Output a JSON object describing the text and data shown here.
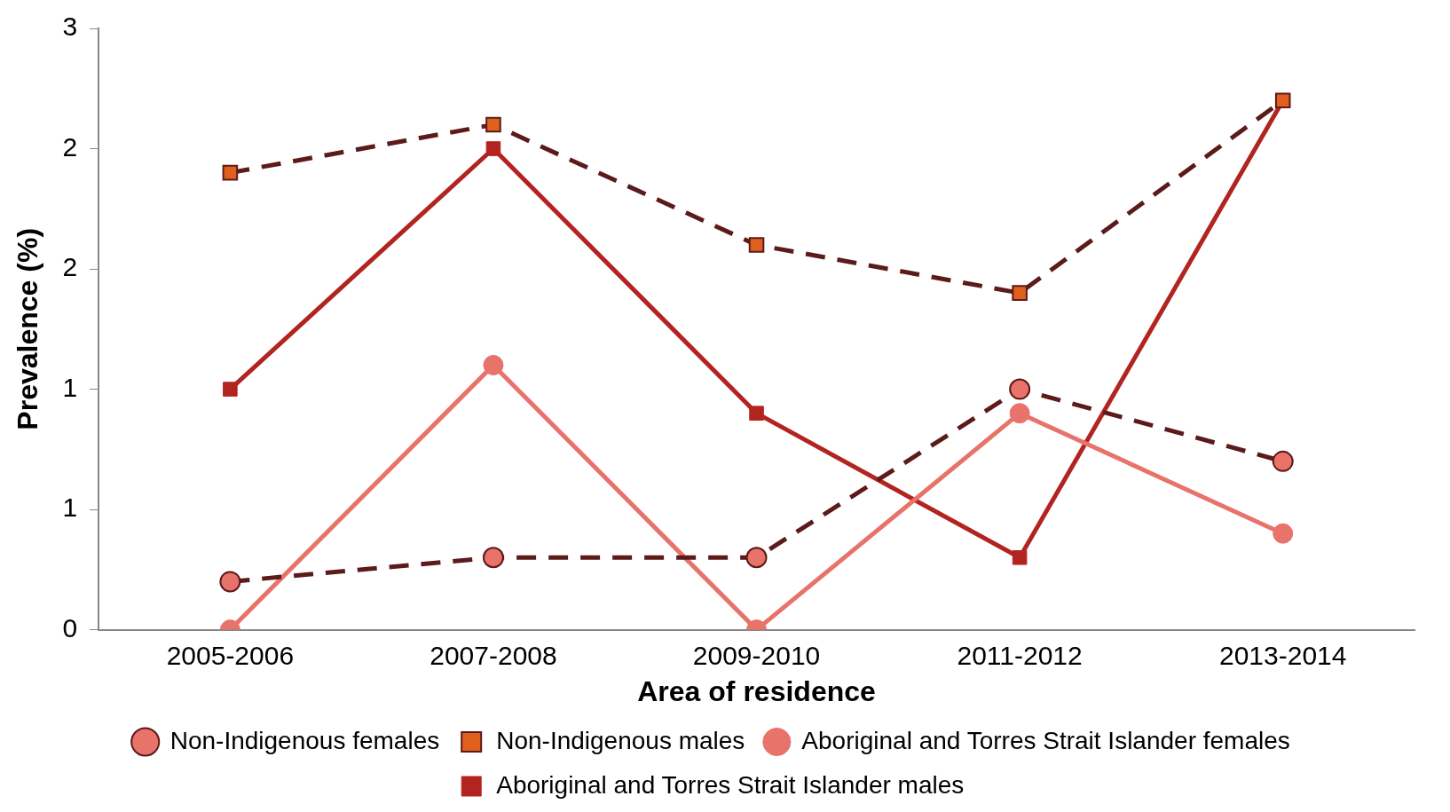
{
  "chart_data": {
    "type": "line",
    "xlabel": "Area of residence",
    "ylabel": "Prevalence (%)",
    "categories": [
      "2005-2006",
      "2007-2008",
      "2009-2010",
      "2011-2012",
      "2013-2014"
    ],
    "ylim": [
      0,
      2.5
    ],
    "yticks": [
      0,
      {
        "value": 0.5,
        "label": "1"
      },
      {
        "value": 1,
        "label": "1"
      },
      {
        "value": 1.5,
        "label": "2"
      },
      {
        "value": 2,
        "label": "2"
      },
      {
        "value": 2.5,
        "label": "3"
      }
    ],
    "grid": false,
    "legend": "bottom",
    "series": [
      {
        "name": "Aboriginal and Torres Strait Islander males",
        "color": "#b22420",
        "marker": "square",
        "line_style": "solid",
        "values": [
          1.0,
          2.0,
          0.9,
          0.3,
          2.2
        ]
      },
      {
        "name": "Aboriginal and Torres Strait Islander females",
        "color": "#e8736a",
        "marker": "circle",
        "line_style": "solid",
        "values": [
          0,
          1.1,
          0,
          0.9,
          0.4
        ]
      },
      {
        "name": "Non-Indigenous males",
        "color": "#5c1a1a",
        "marker": "square",
        "line_style": "dashed",
        "values": [
          1.9,
          2.1,
          1.6,
          1.4,
          2.2
        ]
      },
      {
        "name": "Non-Indigenous females",
        "color": "#5c1a1a",
        "marker": "circle",
        "line_style": "dashed",
        "values": [
          0.2,
          0.3,
          0.3,
          1.0,
          0.7
        ]
      }
    ]
  }
}
